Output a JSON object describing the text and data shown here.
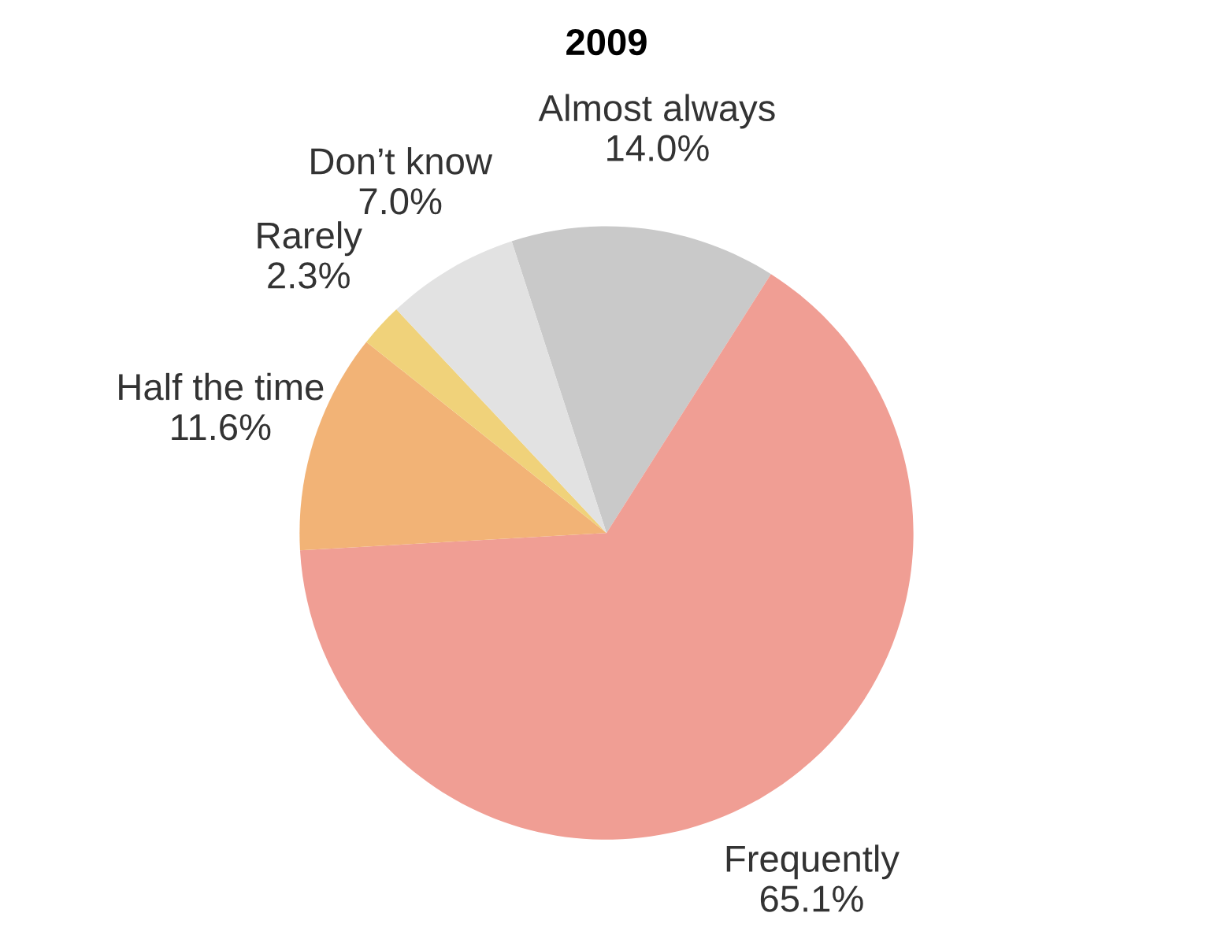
{
  "chart_data": {
    "type": "pie",
    "title": "2009",
    "categories": [
      "Almost always",
      "Frequently",
      "Half the time",
      "Rarely",
      "Don’t know"
    ],
    "values": [
      14.0,
      65.1,
      11.6,
      2.3,
      7.0
    ],
    "value_labels": [
      "14.0%",
      "65.1%",
      "11.6%",
      "2.3%",
      "7.0%"
    ],
    "colors": [
      "#c9c9c9",
      "#f09e94",
      "#f2b376",
      "#f0d27a",
      "#e2e2e2"
    ],
    "legend": false
  }
}
